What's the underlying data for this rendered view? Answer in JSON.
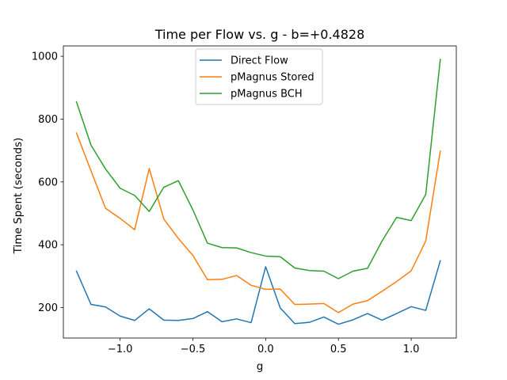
{
  "chart_data": {
    "type": "line",
    "title": "Time per Flow vs. g - b=+0.4828",
    "xlabel": "g",
    "ylabel": "Time Spent (seconds)",
    "xlim": [
      -1.39,
      1.31
    ],
    "ylim": [
      103,
      1033
    ],
    "xticks": [
      -1.0,
      -0.5,
      0.0,
      0.5,
      1.0
    ],
    "xtick_labels": [
      "−1.0",
      "−0.5",
      "0.0",
      "0.5",
      "1.0"
    ],
    "yticks": [
      200,
      400,
      600,
      800,
      1000
    ],
    "ytick_labels": [
      "200",
      "400",
      "600",
      "800",
      "1000"
    ],
    "grid": false,
    "legend_position": "top-center",
    "x": [
      -1.3,
      -1.2,
      -1.1,
      -1.0,
      -0.9,
      -0.8,
      -0.7,
      -0.6,
      -0.5,
      -0.4,
      -0.3,
      -0.2,
      -0.1,
      0.0,
      0.1,
      0.2,
      0.3,
      0.4,
      0.5,
      0.6,
      0.7,
      0.8,
      0.9,
      1.0,
      1.1,
      1.2
    ],
    "series": [
      {
        "name": "Direct Flow",
        "color": "#1f77b4",
        "values": [
          316,
          210,
          202,
          173,
          159,
          196,
          160,
          159,
          165,
          187,
          155,
          164,
          152,
          330,
          199,
          149,
          153,
          170,
          147,
          161,
          181,
          160,
          181,
          203,
          191,
          349
        ]
      },
      {
        "name": "pMagnus Stored",
        "color": "#ff7f0e",
        "values": [
          756,
          635,
          516,
          484,
          448,
          643,
          482,
          420,
          366,
          289,
          290,
          302,
          271,
          258,
          259,
          210,
          211,
          213,
          184,
          211,
          222,
          252,
          283,
          317,
          412,
          698
        ]
      },
      {
        "name": "pMagnus BCH",
        "color": "#2ca02c",
        "values": [
          855,
          717,
          641,
          580,
          557,
          506,
          583,
          604,
          511,
          405,
          391,
          390,
          375,
          364,
          362,
          326,
          318,
          316,
          292,
          316,
          325,
          412,
          487,
          477,
          560,
          990
        ]
      }
    ]
  }
}
